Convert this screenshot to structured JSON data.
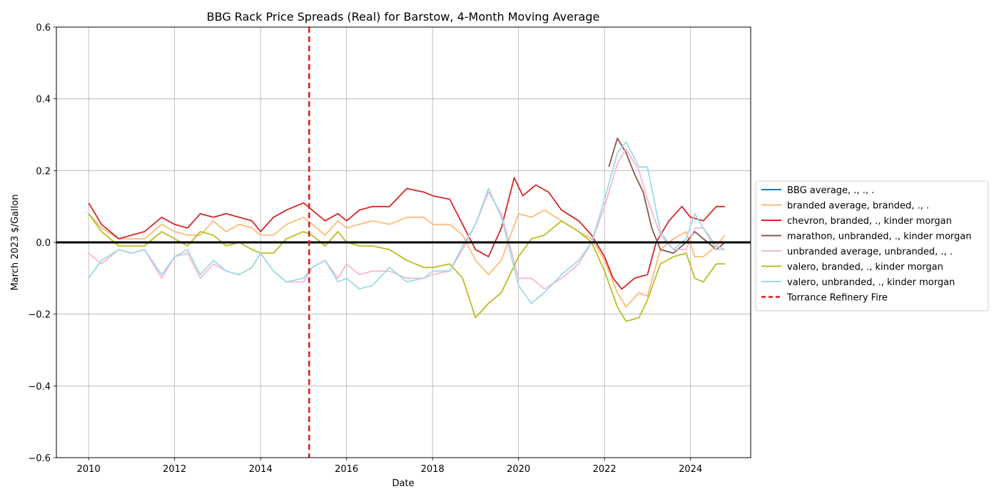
{
  "chart_data": {
    "type": "line",
    "title": "BBG Rack Price Spreads (Real) for Barstow, 4-Month Moving Average",
    "xlabel": "Date",
    "ylabel": "March 2023 $/Gallon",
    "xlim": [
      2009.25,
      2025.4
    ],
    "ylim": [
      -0.6,
      0.6
    ],
    "x_ticks": [
      2010,
      2012,
      2014,
      2016,
      2018,
      2020,
      2022,
      2024
    ],
    "x_tick_labels": [
      "2010",
      "2012",
      "2014",
      "2016",
      "2018",
      "2020",
      "2022",
      "2024"
    ],
    "y_ticks": [
      -0.6,
      -0.4,
      -0.2,
      0.0,
      0.2,
      0.4,
      0.6
    ],
    "y_tick_labels": [
      "−0.6",
      "−0.4",
      "−0.2",
      "0.0",
      "0.2",
      "0.4",
      "0.6"
    ],
    "grid": true,
    "legend_position": "right, outside plot",
    "zero_line": {
      "y": 0,
      "color": "#000000"
    },
    "event_line": {
      "label": "Torrance Refinery Fire",
      "x": 2015.13,
      "color": "#e31a1c",
      "style": "dashed"
    },
    "series": [
      {
        "name": "BBG average, ., ., .",
        "color": "#1f77b4",
        "points": []
      },
      {
        "name": "branded average, branded, ., .",
        "color": "#ffbb78",
        "points": [
          [
            2010.0,
            0.08
          ],
          [
            2010.3,
            0.04
          ],
          [
            2010.7,
            0.01
          ],
          [
            2011.0,
            0.01
          ],
          [
            2011.3,
            0.01
          ],
          [
            2011.7,
            0.05
          ],
          [
            2012.0,
            0.03
          ],
          [
            2012.3,
            0.02
          ],
          [
            2012.6,
            0.02
          ],
          [
            2012.9,
            0.06
          ],
          [
            2013.2,
            0.03
          ],
          [
            2013.5,
            0.05
          ],
          [
            2013.8,
            0.04
          ],
          [
            2014.0,
            0.02
          ],
          [
            2014.3,
            0.02
          ],
          [
            2014.6,
            0.05
          ],
          [
            2015.0,
            0.07
          ],
          [
            2015.2,
            0.05
          ],
          [
            2015.5,
            0.02
          ],
          [
            2015.8,
            0.06
          ],
          [
            2016.0,
            0.04
          ],
          [
            2016.3,
            0.05
          ],
          [
            2016.6,
            0.06
          ],
          [
            2017.0,
            0.05
          ],
          [
            2017.4,
            0.07
          ],
          [
            2017.8,
            0.07
          ],
          [
            2018.0,
            0.05
          ],
          [
            2018.4,
            0.05
          ],
          [
            2018.7,
            0.02
          ],
          [
            2019.0,
            -0.05
          ],
          [
            2019.3,
            -0.09
          ],
          [
            2019.6,
            -0.05
          ],
          [
            2020.0,
            0.08
          ],
          [
            2020.3,
            0.07
          ],
          [
            2020.6,
            0.09
          ],
          [
            2021.0,
            0.06
          ],
          [
            2021.4,
            0.03
          ],
          [
            2021.7,
            0.01
          ],
          [
            2022.0,
            -0.05
          ],
          [
            2022.3,
            -0.14
          ],
          [
            2022.5,
            -0.18
          ],
          [
            2022.8,
            -0.14
          ],
          [
            2023.0,
            -0.15
          ],
          [
            2023.3,
            -0.02
          ],
          [
            2023.6,
            0.01
          ],
          [
            2023.9,
            0.03
          ],
          [
            2024.1,
            -0.04
          ],
          [
            2024.3,
            -0.04
          ],
          [
            2024.6,
            -0.01
          ],
          [
            2024.8,
            0.02
          ]
        ]
      },
      {
        "name": "chevron, branded, ., kinder morgan",
        "color": "#d62728",
        "points": [
          [
            2010.0,
            0.11
          ],
          [
            2010.3,
            0.05
          ],
          [
            2010.7,
            0.01
          ],
          [
            2011.0,
            0.02
          ],
          [
            2011.3,
            0.03
          ],
          [
            2011.7,
            0.07
          ],
          [
            2012.0,
            0.05
          ],
          [
            2012.3,
            0.04
          ],
          [
            2012.6,
            0.08
          ],
          [
            2012.9,
            0.07
          ],
          [
            2013.2,
            0.08
          ],
          [
            2013.5,
            0.07
          ],
          [
            2013.8,
            0.06
          ],
          [
            2014.0,
            0.03
          ],
          [
            2014.3,
            0.07
          ],
          [
            2014.6,
            0.09
          ],
          [
            2015.0,
            0.11
          ],
          [
            2015.2,
            0.09
          ],
          [
            2015.5,
            0.06
          ],
          [
            2015.8,
            0.08
          ],
          [
            2016.0,
            0.06
          ],
          [
            2016.3,
            0.09
          ],
          [
            2016.6,
            0.1
          ],
          [
            2017.0,
            0.1
          ],
          [
            2017.4,
            0.15
          ],
          [
            2017.8,
            0.14
          ],
          [
            2018.0,
            0.13
          ],
          [
            2018.4,
            0.12
          ],
          [
            2018.7,
            0.05
          ],
          [
            2019.0,
            -0.02
          ],
          [
            2019.3,
            -0.04
          ],
          [
            2019.6,
            0.04
          ],
          [
            2019.9,
            0.18
          ],
          [
            2020.1,
            0.13
          ],
          [
            2020.4,
            0.16
          ],
          [
            2020.7,
            0.14
          ],
          [
            2021.0,
            0.09
          ],
          [
            2021.4,
            0.06
          ],
          [
            2021.7,
            0.02
          ],
          [
            2022.0,
            -0.04
          ],
          [
            2022.2,
            -0.1
          ],
          [
            2022.4,
            -0.13
          ],
          [
            2022.7,
            -0.1
          ],
          [
            2023.0,
            -0.09
          ],
          [
            2023.2,
            0.0
          ],
          [
            2023.5,
            0.06
          ],
          [
            2023.8,
            0.1
          ],
          [
            2024.0,
            0.07
          ],
          [
            2024.3,
            0.06
          ],
          [
            2024.6,
            0.1
          ],
          [
            2024.8,
            0.1
          ]
        ]
      },
      {
        "name": "marathon, unbranded, ., kinder morgan",
        "color": "#8c564b",
        "points": [
          [
            2022.1,
            0.21
          ],
          [
            2022.3,
            0.29
          ],
          [
            2022.5,
            0.25
          ],
          [
            2022.7,
            0.19
          ],
          [
            2022.9,
            0.14
          ],
          [
            2023.1,
            0.04
          ],
          [
            2023.3,
            -0.02
          ],
          [
            2023.6,
            -0.03
          ],
          [
            2023.9,
            0.0
          ],
          [
            2024.1,
            0.03
          ],
          [
            2024.3,
            0.01
          ],
          [
            2024.6,
            -0.02
          ],
          [
            2024.8,
            0.0
          ]
        ]
      },
      {
        "name": "unbranded average, unbranded, ., .",
        "color": "#f7b6d2",
        "points": [
          [
            2010.0,
            -0.03
          ],
          [
            2010.3,
            -0.06
          ],
          [
            2010.7,
            -0.02
          ],
          [
            2011.0,
            -0.03
          ],
          [
            2011.3,
            -0.02
          ],
          [
            2011.7,
            -0.1
          ],
          [
            2012.0,
            -0.04
          ],
          [
            2012.3,
            -0.03
          ],
          [
            2012.6,
            -0.1
          ],
          [
            2012.9,
            -0.06
          ],
          [
            2013.2,
            -0.08
          ],
          [
            2013.5,
            -0.09
          ],
          [
            2013.8,
            -0.07
          ],
          [
            2014.0,
            -0.03
          ],
          [
            2014.3,
            -0.08
          ],
          [
            2014.6,
            -0.11
          ],
          [
            2015.0,
            -0.11
          ],
          [
            2015.2,
            -0.07
          ],
          [
            2015.5,
            -0.05
          ],
          [
            2015.8,
            -0.1
          ],
          [
            2016.0,
            -0.06
          ],
          [
            2016.3,
            -0.09
          ],
          [
            2016.6,
            -0.08
          ],
          [
            2017.0,
            -0.08
          ],
          [
            2017.4,
            -0.1
          ],
          [
            2017.8,
            -0.1
          ],
          [
            2018.0,
            -0.09
          ],
          [
            2018.4,
            -0.08
          ],
          [
            2018.7,
            -0.02
          ],
          [
            2019.0,
            0.05
          ],
          [
            2019.3,
            0.14
          ],
          [
            2019.6,
            0.08
          ],
          [
            2020.0,
            -0.1
          ],
          [
            2020.3,
            -0.1
          ],
          [
            2020.6,
            -0.13
          ],
          [
            2021.0,
            -0.1
          ],
          [
            2021.4,
            -0.06
          ],
          [
            2021.7,
            0.0
          ],
          [
            2022.0,
            0.1
          ],
          [
            2022.3,
            0.22
          ],
          [
            2022.5,
            0.26
          ],
          [
            2022.8,
            0.2
          ],
          [
            2023.0,
            0.12
          ],
          [
            2023.3,
            0.02
          ],
          [
            2023.6,
            -0.02
          ],
          [
            2023.9,
            -0.02
          ],
          [
            2024.1,
            0.04
          ],
          [
            2024.3,
            0.04
          ],
          [
            2024.6,
            -0.01
          ],
          [
            2024.8,
            -0.02
          ]
        ]
      },
      {
        "name": "valero, branded, ., kinder morgan",
        "color": "#bcbd22",
        "points": [
          [
            2010.0,
            0.08
          ],
          [
            2010.3,
            0.03
          ],
          [
            2010.7,
            -0.01
          ],
          [
            2011.0,
            -0.01
          ],
          [
            2011.3,
            -0.01
          ],
          [
            2011.7,
            0.03
          ],
          [
            2012.0,
            0.01
          ],
          [
            2012.3,
            -0.01
          ],
          [
            2012.6,
            0.03
          ],
          [
            2012.9,
            0.02
          ],
          [
            2013.2,
            -0.01
          ],
          [
            2013.5,
            0.0
          ],
          [
            2013.8,
            -0.02
          ],
          [
            2014.0,
            -0.03
          ],
          [
            2014.3,
            -0.03
          ],
          [
            2014.6,
            0.01
          ],
          [
            2015.0,
            0.03
          ],
          [
            2015.2,
            0.02
          ],
          [
            2015.5,
            -0.01
          ],
          [
            2015.8,
            0.03
          ],
          [
            2016.0,
            0.0
          ],
          [
            2016.3,
            -0.01
          ],
          [
            2016.6,
            -0.01
          ],
          [
            2017.0,
            -0.02
          ],
          [
            2017.4,
            -0.05
          ],
          [
            2017.8,
            -0.07
          ],
          [
            2018.0,
            -0.07
          ],
          [
            2018.4,
            -0.06
          ],
          [
            2018.7,
            -0.1
          ],
          [
            2019.0,
            -0.21
          ],
          [
            2019.3,
            -0.17
          ],
          [
            2019.6,
            -0.14
          ],
          [
            2020.0,
            -0.04
          ],
          [
            2020.3,
            0.01
          ],
          [
            2020.6,
            0.02
          ],
          [
            2021.0,
            0.06
          ],
          [
            2021.4,
            0.03
          ],
          [
            2021.7,
            0.0
          ],
          [
            2022.0,
            -0.08
          ],
          [
            2022.3,
            -0.18
          ],
          [
            2022.5,
            -0.22
          ],
          [
            2022.8,
            -0.21
          ],
          [
            2023.0,
            -0.16
          ],
          [
            2023.3,
            -0.06
          ],
          [
            2023.6,
            -0.04
          ],
          [
            2023.9,
            -0.03
          ],
          [
            2024.1,
            -0.1
          ],
          [
            2024.3,
            -0.11
          ],
          [
            2024.6,
            -0.06
          ],
          [
            2024.8,
            -0.06
          ]
        ]
      },
      {
        "name": "valero, unbranded, ., kinder morgan",
        "color": "#9edae5",
        "points": [
          [
            2010.0,
            -0.1
          ],
          [
            2010.3,
            -0.05
          ],
          [
            2010.7,
            -0.02
          ],
          [
            2011.0,
            -0.03
          ],
          [
            2011.3,
            -0.02
          ],
          [
            2011.7,
            -0.09
          ],
          [
            2012.0,
            -0.04
          ],
          [
            2012.3,
            -0.02
          ],
          [
            2012.6,
            -0.09
          ],
          [
            2012.9,
            -0.05
          ],
          [
            2013.2,
            -0.08
          ],
          [
            2013.5,
            -0.09
          ],
          [
            2013.8,
            -0.07
          ],
          [
            2014.0,
            -0.03
          ],
          [
            2014.3,
            -0.08
          ],
          [
            2014.6,
            -0.11
          ],
          [
            2015.0,
            -0.1
          ],
          [
            2015.2,
            -0.07
          ],
          [
            2015.5,
            -0.05
          ],
          [
            2015.8,
            -0.11
          ],
          [
            2016.0,
            -0.1
          ],
          [
            2016.3,
            -0.13
          ],
          [
            2016.6,
            -0.12
          ],
          [
            2017.0,
            -0.07
          ],
          [
            2017.4,
            -0.11
          ],
          [
            2017.8,
            -0.1
          ],
          [
            2018.0,
            -0.08
          ],
          [
            2018.4,
            -0.08
          ],
          [
            2018.7,
            -0.01
          ],
          [
            2019.0,
            0.05
          ],
          [
            2019.3,
            0.15
          ],
          [
            2019.6,
            0.07
          ],
          [
            2020.0,
            -0.12
          ],
          [
            2020.3,
            -0.17
          ],
          [
            2020.6,
            -0.14
          ],
          [
            2021.0,
            -0.09
          ],
          [
            2021.4,
            -0.05
          ],
          [
            2021.7,
            0.0
          ],
          [
            2022.0,
            0.12
          ],
          [
            2022.3,
            0.25
          ],
          [
            2022.5,
            0.28
          ],
          [
            2022.8,
            0.21
          ],
          [
            2023.0,
            0.21
          ],
          [
            2023.3,
            0.03
          ],
          [
            2023.6,
            -0.02
          ],
          [
            2023.9,
            0.01
          ],
          [
            2024.1,
            0.08
          ],
          [
            2024.3,
            0.04
          ],
          [
            2024.6,
            -0.02
          ],
          [
            2024.8,
            -0.02
          ]
        ]
      }
    ]
  }
}
